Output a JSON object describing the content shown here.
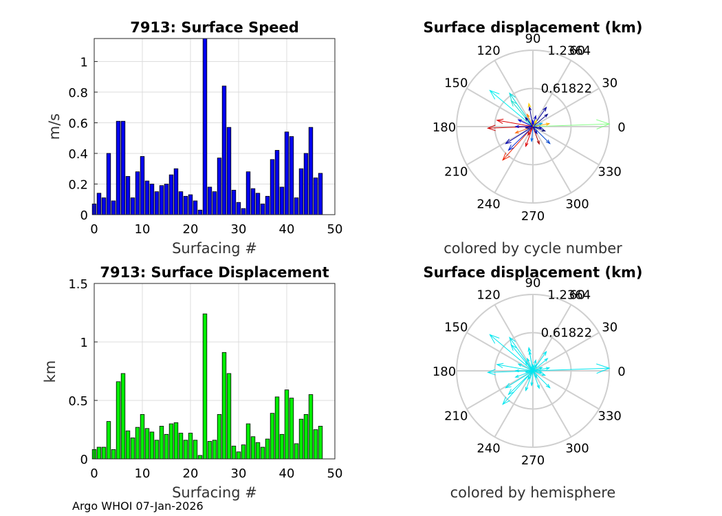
{
  "footer": "Argo WHOI 07-Jan-2026",
  "chart_data": [
    {
      "type": "bar",
      "title": "7913: Surface Speed",
      "xlabel": "Surfacing #",
      "ylabel": "m/s",
      "xlim": [
        0,
        50
      ],
      "ylim": [
        0,
        1.15
      ],
      "xticks": [
        "0",
        "10",
        "20",
        "30",
        "40",
        "50"
      ],
      "yticks": [
        "0",
        "0.2",
        "0.4",
        "0.6",
        "0.8",
        "1"
      ],
      "color": "#0000ee",
      "x": [
        0,
        1,
        2,
        3,
        4,
        5,
        6,
        7,
        8,
        9,
        10,
        11,
        12,
        13,
        14,
        15,
        16,
        17,
        18,
        19,
        20,
        21,
        22,
        23,
        24,
        25,
        26,
        27,
        28,
        29,
        30,
        31,
        32,
        33,
        34,
        35,
        36,
        37,
        38,
        39,
        40,
        41,
        42,
        43,
        44,
        45,
        46,
        47
      ],
      "values": [
        0.07,
        0.14,
        0.11,
        0.4,
        0.09,
        0.61,
        0.61,
        0.25,
        0.11,
        0.28,
        0.38,
        0.22,
        0.2,
        0.15,
        0.19,
        0.2,
        0.26,
        0.3,
        0.15,
        0.12,
        0.13,
        0.09,
        0.03,
        1.15,
        0.18,
        0.15,
        0.37,
        0.84,
        0.57,
        0.16,
        0.08,
        0.04,
        0.28,
        0.17,
        0.14,
        0.07,
        0.12,
        0.36,
        0.42,
        0.18,
        0.54,
        0.51,
        0.11,
        0.3,
        0.4,
        0.57,
        0.24,
        0.27
      ]
    },
    {
      "type": "polar",
      "title": "Surface displacement (km)",
      "subtitle": "colored by cycle number",
      "rmax": 1.2364,
      "rticks": [
        "0.61822",
        "1.2364"
      ],
      "angle_ticks": [
        "0",
        "30",
        "60",
        "90",
        "120",
        "150",
        "180",
        "210",
        "240",
        "270",
        "300",
        "330"
      ],
      "colormap": "jet"
    },
    {
      "type": "bar",
      "title": "7913: Surface Displacement",
      "xlabel": "Surfacing #",
      "ylabel": "km",
      "xlim": [
        0,
        50
      ],
      "ylim": [
        0,
        1.5
      ],
      "xticks": [
        "0",
        "10",
        "20",
        "30",
        "40",
        "50"
      ],
      "yticks": [
        "0",
        "0.5",
        "1",
        "1.5"
      ],
      "color": "#00ee00",
      "x": [
        0,
        1,
        2,
        3,
        4,
        5,
        6,
        7,
        8,
        9,
        10,
        11,
        12,
        13,
        14,
        15,
        16,
        17,
        18,
        19,
        20,
        21,
        22,
        23,
        24,
        25,
        26,
        27,
        28,
        29,
        30,
        31,
        32,
        33,
        34,
        35,
        36,
        37,
        38,
        39,
        40,
        41,
        42,
        43,
        44,
        45,
        46,
        47
      ],
      "values": [
        0.08,
        0.1,
        0.1,
        0.32,
        0.08,
        0.66,
        0.73,
        0.24,
        0.18,
        0.27,
        0.38,
        0.26,
        0.23,
        0.16,
        0.28,
        0.21,
        0.3,
        0.31,
        0.22,
        0.16,
        0.22,
        0.16,
        0.03,
        1.24,
        0.15,
        0.16,
        0.38,
        0.91,
        0.73,
        0.11,
        0.06,
        0.12,
        0.3,
        0.19,
        0.14,
        0.1,
        0.17,
        0.39,
        0.53,
        0.21,
        0.59,
        0.52,
        0.13,
        0.34,
        0.38,
        0.55,
        0.25,
        0.28
      ]
    },
    {
      "type": "polar",
      "title": "Surface displacement (km)",
      "subtitle": "colored by hemisphere",
      "rmax": 1.2364,
      "rticks": [
        "0.61822",
        "1.2364"
      ],
      "angle_ticks": [
        "0",
        "30",
        "60",
        "90",
        "120",
        "150",
        "180",
        "210",
        "240",
        "270",
        "300",
        "330"
      ],
      "color": "#00e5ee"
    }
  ],
  "vectors": [
    {
      "deg": 2,
      "r": 1.24,
      "c": "#88ff88"
    },
    {
      "deg": 140,
      "r": 0.91,
      "c": "#00eeee"
    },
    {
      "deg": 125,
      "r": 0.66,
      "c": "#00dddd"
    },
    {
      "deg": 130,
      "r": 0.55,
      "c": "#22ddcc"
    },
    {
      "deg": 170,
      "r": 0.59,
      "c": "#dd0000"
    },
    {
      "deg": 182,
      "r": 0.73,
      "c": "#cc0000"
    },
    {
      "deg": 228,
      "r": 0.73,
      "c": "#ee2200"
    },
    {
      "deg": 224,
      "r": 0.55,
      "c": "#0022cc"
    },
    {
      "deg": 212,
      "r": 0.52,
      "c": "#0000aa"
    },
    {
      "deg": 55,
      "r": 0.38,
      "c": "#000099"
    },
    {
      "deg": 100,
      "r": 0.38,
      "c": "#ffcc00"
    },
    {
      "deg": 100,
      "r": 0.32,
      "c": "#0000aa"
    },
    {
      "deg": 40,
      "r": 0.31,
      "c": "#000088"
    },
    {
      "deg": 315,
      "r": 0.39,
      "c": "#0044cc"
    },
    {
      "deg": 290,
      "r": 0.3,
      "c": "#aa0000"
    },
    {
      "deg": 250,
      "r": 0.34,
      "c": "#dd0000"
    },
    {
      "deg": 10,
      "r": 0.27,
      "c": "#ffaa00"
    },
    {
      "deg": 180,
      "r": 0.28,
      "c": "#0000cc"
    },
    {
      "deg": 155,
      "r": 0.26,
      "c": "#0000dd"
    },
    {
      "deg": 265,
      "r": 0.24,
      "c": "#0066ee"
    },
    {
      "deg": 340,
      "r": 0.21,
      "c": "#000077"
    },
    {
      "deg": 200,
      "r": 0.3,
      "c": "#ff6600"
    },
    {
      "deg": 115,
      "r": 0.22,
      "c": "#ff8800"
    },
    {
      "deg": 75,
      "r": 0.18,
      "c": "#0000bb"
    },
    {
      "deg": 20,
      "r": 0.16,
      "c": "#00aaff"
    },
    {
      "deg": 350,
      "r": 0.15,
      "c": "#0000bb"
    },
    {
      "deg": 300,
      "r": 0.13,
      "c": "#0000aa"
    },
    {
      "deg": 240,
      "r": 0.16,
      "c": "#cc0000"
    },
    {
      "deg": 190,
      "r": 0.12,
      "c": "#000099"
    },
    {
      "deg": 130,
      "r": 0.19,
      "c": "#000088"
    },
    {
      "deg": 90,
      "r": 0.1,
      "c": "#0000ff"
    },
    {
      "deg": 60,
      "r": 0.12,
      "c": "#ffee00"
    }
  ]
}
